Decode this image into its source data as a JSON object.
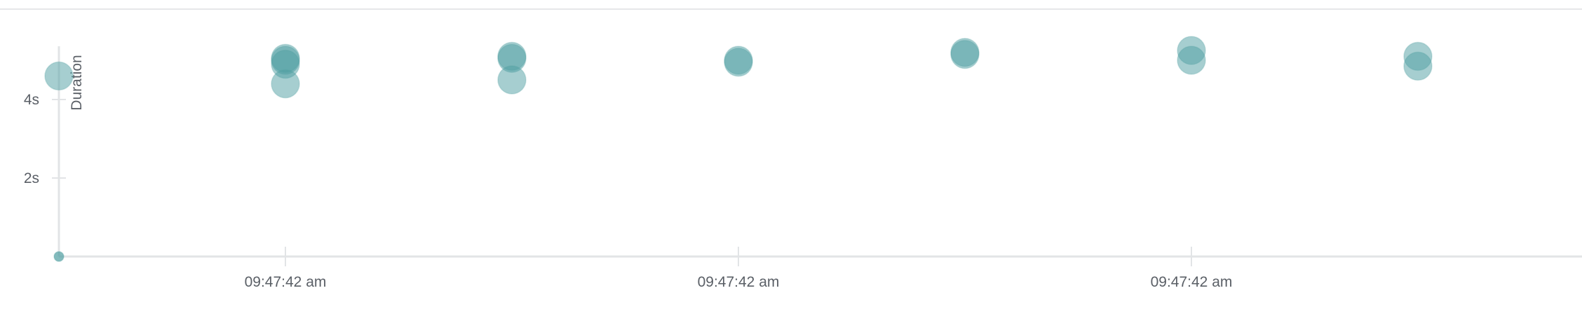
{
  "colors": {
    "point": "#4e9ea1",
    "axis": "#e2e4e6",
    "top_border": "#e6e7e9",
    "text": "#5a5f66"
  },
  "chart_data": {
    "type": "scatter",
    "title": "",
    "xlabel": "",
    "ylabel": "Duration",
    "ylim": [
      0,
      5.2
    ],
    "y_ticks": [
      {
        "value": 4,
        "label": "4s"
      },
      {
        "value": 2,
        "label": "2s"
      }
    ],
    "x_ticks": [
      {
        "index": 1,
        "label": "09:47:42 am"
      },
      {
        "index": 3,
        "label": "09:47:42 am"
      },
      {
        "index": 5,
        "label": "09:47:42 am"
      }
    ],
    "grid": false,
    "legend": "none",
    "points": [
      {
        "x": 0,
        "y": 0,
        "size": "small"
      },
      {
        "x": 0,
        "y": 4.6,
        "size": "large"
      },
      {
        "x": 1,
        "y": 5.05,
        "size": "large"
      },
      {
        "x": 1,
        "y": 5.0,
        "size": "large"
      },
      {
        "x": 1,
        "y": 4.9,
        "size": "large"
      },
      {
        "x": 1,
        "y": 4.4,
        "size": "large"
      },
      {
        "x": 2,
        "y": 5.1,
        "size": "large"
      },
      {
        "x": 2,
        "y": 5.05,
        "size": "large"
      },
      {
        "x": 2,
        "y": 4.5,
        "size": "large"
      },
      {
        "x": 3,
        "y": 5.0,
        "size": "large"
      },
      {
        "x": 3,
        "y": 4.95,
        "size": "large"
      },
      {
        "x": 4,
        "y": 5.2,
        "size": "large"
      },
      {
        "x": 4,
        "y": 5.15,
        "size": "large"
      },
      {
        "x": 5,
        "y": 5.25,
        "size": "large"
      },
      {
        "x": 5,
        "y": 5.0,
        "size": "large"
      },
      {
        "x": 6,
        "y": 5.1,
        "size": "large"
      },
      {
        "x": 6,
        "y": 4.85,
        "size": "large"
      }
    ]
  }
}
